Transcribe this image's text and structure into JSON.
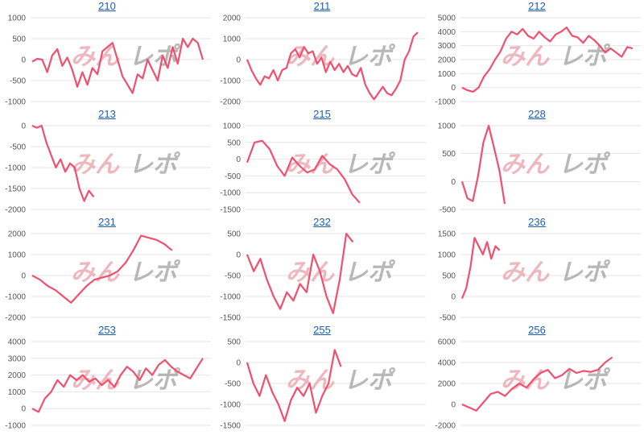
{
  "watermark": {
    "part1": "みん",
    "part2": "レポ"
  },
  "colors": {
    "line": "#f0506e",
    "grid": "#e6e6e6",
    "title": "#1a5fb4",
    "axis_text": "#555555"
  },
  "chart_data": [
    {
      "type": "line",
      "title": "210",
      "yticks": [
        "1000",
        "500",
        "0",
        "-500",
        "-1000"
      ],
      "ylim": [
        -1000,
        1000
      ],
      "values": [
        -50,
        20,
        0,
        -300,
        100,
        250,
        -150,
        50,
        -250,
        -650,
        -300,
        -600,
        -200,
        -350,
        200,
        300,
        400,
        0,
        -400,
        -600,
        -800,
        -350,
        -450,
        0,
        -250,
        -500,
        100,
        -200,
        300,
        -100,
        500,
        300,
        500,
        400,
        0
      ]
    },
    {
      "type": "line",
      "title": "211",
      "yticks": [
        "2000",
        "1000",
        "0",
        "-1000",
        "-2000"
      ],
      "ylim": [
        -2000,
        2000
      ],
      "values": [
        0,
        -500,
        -900,
        -1200,
        -800,
        -900,
        -500,
        -1000,
        -500,
        -400,
        300,
        500,
        100,
        600,
        300,
        400,
        -200,
        100,
        -600,
        -100,
        -500,
        -200,
        -600,
        -300,
        -700,
        -800,
        -400,
        -1200,
        -1600,
        -1900,
        -1600,
        -1300,
        -1600,
        -1700,
        -1400,
        -1000,
        0,
        400,
        1100,
        1300
      ]
    },
    {
      "type": "line",
      "title": "212",
      "yticks": [
        "5000",
        "4000",
        "3000",
        "2000",
        "1000",
        "0",
        "-1000"
      ],
      "ylim": [
        -1000,
        5000
      ],
      "values": [
        0,
        -200,
        -300,
        0,
        800,
        1300,
        2000,
        2600,
        3500,
        4000,
        3800,
        4200,
        3700,
        3500,
        4000,
        3600,
        3300,
        3800,
        4000,
        4300,
        3700,
        3600,
        3200,
        3700,
        3400,
        3000,
        2500,
        2800,
        2500,
        2200,
        2900,
        2800
      ]
    },
    {
      "type": "line",
      "title": "213",
      "yticks": [
        "0",
        "-500",
        "-1000",
        "-1500",
        "-2000"
      ],
      "ylim": [
        -2000,
        0
      ],
      "values": [
        0,
        -50,
        0,
        -400,
        -700,
        -1000,
        -800,
        -1100,
        -900,
        -1000,
        -1500,
        -1800,
        -1550,
        -1700
      ]
    },
    {
      "type": "line",
      "title": "215",
      "yticks": [
        "1000",
        "500",
        "0",
        "-500",
        "-1000",
        "-1500"
      ],
      "ylim": [
        -1500,
        1000
      ],
      "values": [
        -100,
        500,
        550,
        300,
        -200,
        -500,
        50,
        -200,
        -400,
        -300,
        100,
        -150,
        -300,
        -600,
        -1050,
        -1300
      ]
    },
    {
      "type": "line",
      "title": "228",
      "yticks": [
        "1000",
        "500",
        "0",
        "-500"
      ],
      "ylim": [
        -500,
        1000
      ],
      "values": [
        0,
        -300,
        -350,
        100,
        700,
        1000,
        600,
        200,
        -400
      ]
    },
    {
      "type": "line",
      "title": "231",
      "yticks": [
        "2000",
        "1000",
        "0",
        "-1000",
        "-2000"
      ],
      "ylim": [
        -2000,
        2000
      ],
      "values": [
        0,
        -200,
        -500,
        -700,
        -1000,
        -1300,
        -900,
        -500,
        -200,
        -100,
        0,
        200,
        600,
        1200,
        1900,
        1800,
        1700,
        1500,
        1200
      ]
    },
    {
      "type": "line",
      "title": "232",
      "yticks": [
        "500",
        "0",
        "-500",
        "-1000",
        "-1500"
      ],
      "ylim": [
        -1500,
        500
      ],
      "values": [
        0,
        -400,
        -100,
        -600,
        -1000,
        -1300,
        -900,
        -1100,
        -700,
        -900,
        0,
        -400,
        -1000,
        -1400,
        -600,
        500,
        300
      ]
    },
    {
      "type": "line",
      "title": "236",
      "yticks": [
        "1500",
        "1000",
        "500",
        "0",
        "-500"
      ],
      "ylim": [
        -500,
        1500
      ],
      "values": [
        -50,
        200,
        700,
        1400,
        1200,
        1000,
        1300,
        900,
        1200,
        1100
      ]
    },
    {
      "type": "line",
      "title": "253",
      "yticks": [
        "4000",
        "3000",
        "2000",
        "1000",
        "0",
        "-1000"
      ],
      "ylim": [
        -1000,
        4000
      ],
      "values": [
        0,
        -200,
        600,
        1000,
        1700,
        1300,
        2000,
        1700,
        2000,
        1600,
        1800,
        1400,
        1700,
        1300,
        2000,
        2500,
        2200,
        1700,
        2400,
        2000,
        2600,
        2900,
        2500,
        2200,
        2000,
        1800,
        2400,
        3000
      ]
    },
    {
      "type": "line",
      "title": "255",
      "yticks": [
        "500",
        "0",
        "-500",
        "-1000",
        "-1500"
      ],
      "ylim": [
        -1500,
        500
      ],
      "values": [
        0,
        -500,
        -800,
        -300,
        -700,
        -1000,
        -1400,
        -900,
        -600,
        -800,
        -500,
        -1200,
        -800,
        -500,
        300,
        -100
      ]
    },
    {
      "type": "line",
      "title": "256",
      "yticks": [
        "6000",
        "4000",
        "2000",
        "0",
        "-2000"
      ],
      "ylim": [
        -2000,
        6000
      ],
      "values": [
        0,
        -300,
        -600,
        200,
        1000,
        1200,
        800,
        1500,
        2000,
        1600,
        2400,
        3000,
        3300,
        2500,
        2800,
        3400,
        3000,
        3200,
        3100,
        3300,
        4000,
        4500
      ]
    }
  ]
}
